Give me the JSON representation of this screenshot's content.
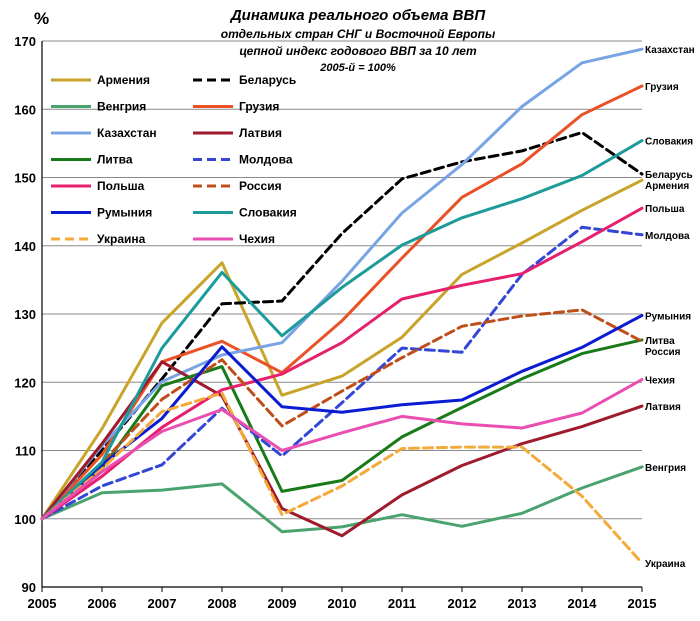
{
  "chart_data": {
    "type": "line",
    "title": "Динамика реального объема ВВП",
    "subtitle_lines": [
      "отдельных стран СНГ и Восточной Европы",
      "цепной индекс годового  ВВП  за 10 лет",
      "2005-й = 100%"
    ],
    "ylabel": "%",
    "xlabel": "",
    "x": [
      2005,
      2006,
      2007,
      2008,
      2009,
      2010,
      2011,
      2012,
      2013,
      2014,
      2015
    ],
    "ylim": [
      90,
      170
    ],
    "yticks": [
      90,
      100,
      110,
      120,
      130,
      140,
      150,
      160,
      170
    ],
    "grid": "horizontal",
    "legend_placement": "top-left",
    "series": [
      {
        "name": "Армения",
        "end_label": "Армения",
        "color": "#c8a42a",
        "dash": "solid",
        "values": [
          100,
          113.2,
          128.7,
          137.5,
          118.1,
          120.9,
          126.6,
          135.8,
          140.4,
          145.2,
          149.6
        ]
      },
      {
        "name": "Беларусь",
        "end_label": "Беларусь",
        "color": "#000000",
        "dash": "dashed",
        "values": [
          100,
          110.0,
          120.5,
          131.5,
          131.9,
          141.8,
          149.8,
          152.3,
          153.9,
          156.6,
          150.5
        ]
      },
      {
        "name": "Венгрия",
        "end_label": "Венгрия",
        "color": "#4aa36e",
        "dash": "solid",
        "values": [
          100,
          103.8,
          104.2,
          105.1,
          98.1,
          98.8,
          100.6,
          98.9,
          100.8,
          104.5,
          107.6
        ]
      },
      {
        "name": "Грузия",
        "end_label": "Грузия",
        "color": "#ea5127",
        "dash": "solid",
        "values": [
          100,
          109.4,
          123.0,
          126.0,
          121.4,
          129.0,
          138.2,
          147.1,
          152.0,
          159.2,
          163.4
        ]
      },
      {
        "name": "Казахстан",
        "end_label": "Казахстан",
        "color": "#78a4e4",
        "dash": "solid",
        "values": [
          100,
          110.7,
          120.1,
          124.0,
          125.8,
          134.8,
          144.8,
          151.9,
          160.4,
          166.8,
          168.8
        ]
      },
      {
        "name": "Латвия",
        "end_label": "Латвия",
        "color": "#9e1a2c",
        "dash": "solid",
        "values": [
          100,
          111.0,
          123.0,
          118.0,
          101.5,
          97.5,
          103.5,
          107.8,
          111.0,
          113.5,
          116.5
        ]
      },
      {
        "name": "Литва",
        "end_label": "Литва",
        "color": "#197a19",
        "dash": "solid",
        "values": [
          100,
          107.4,
          119.5,
          122.3,
          104.0,
          105.6,
          112.0,
          116.3,
          120.5,
          124.2,
          126.2
        ]
      },
      {
        "name": "Молдова",
        "end_label": "Молдова",
        "color": "#3346d6",
        "dash": "dashed",
        "values": [
          100,
          104.8,
          107.9,
          116.2,
          109.2,
          117.0,
          125.0,
          124.4,
          135.8,
          142.7,
          141.6
        ]
      },
      {
        "name": "Польша",
        "end_label": "Польша",
        "color": "#e61f6e",
        "dash": "solid",
        "values": [
          100,
          106.2,
          113.4,
          118.9,
          121.2,
          125.8,
          132.2,
          134.2,
          135.9,
          140.6,
          145.5
        ]
      },
      {
        "name": "Россия",
        "end_label": "Россия",
        "color": "#bf4f1a",
        "dash": "dashed",
        "values": [
          100,
          108.2,
          117.5,
          123.3,
          113.6,
          118.7,
          123.6,
          128.2,
          129.7,
          130.6,
          126.0
        ]
      },
      {
        "name": "Румыния",
        "end_label": "Румыния",
        "color": "#0b1bd2",
        "dash": "solid",
        "values": [
          100,
          107.9,
          114.7,
          125.2,
          116.4,
          115.6,
          116.7,
          117.4,
          121.6,
          125.1,
          129.8
        ]
      },
      {
        "name": "Словакия",
        "end_label": "Словакия",
        "color": "#1d9b9b",
        "dash": "solid",
        "values": [
          100,
          108.3,
          125.0,
          136.1,
          126.8,
          133.9,
          140.1,
          144.1,
          146.9,
          150.3,
          155.4
        ]
      },
      {
        "name": "Украина",
        "end_label": "Украина",
        "color": "#f4aa3a",
        "dash": "dashed",
        "values": [
          100,
          107.3,
          115.7,
          118.4,
          100.6,
          104.8,
          110.3,
          110.5,
          110.5,
          103.3,
          93.5
        ]
      },
      {
        "name": "Чехия",
        "end_label": "Чехия",
        "color": "#e94fb0",
        "dash": "solid",
        "values": [
          100,
          106.9,
          112.8,
          116.0,
          110.0,
          112.6,
          115.0,
          113.9,
          113.3,
          115.5,
          120.4
        ]
      }
    ]
  }
}
